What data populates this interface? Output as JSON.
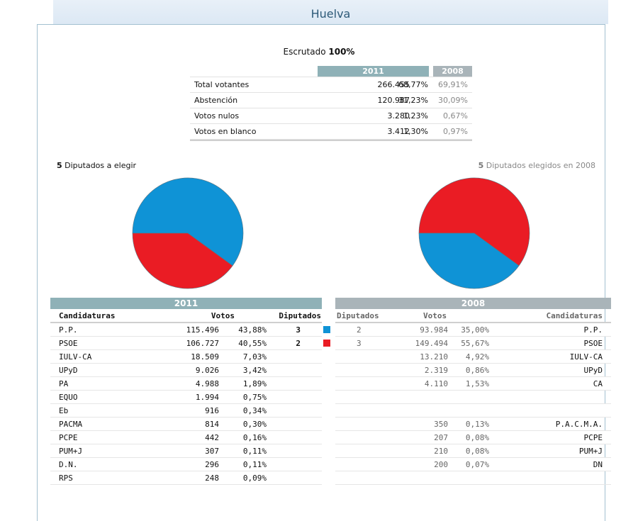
{
  "page": {
    "title": "Huelva"
  },
  "summary": {
    "escrutado_label": "Escrutado",
    "escrutado_value": "100%",
    "year_current": "2011",
    "year_prev": "2008",
    "rows": [
      {
        "label": "Total votantes",
        "value": "266.455",
        "pct": "68,77%",
        "pct_prev": "69,91%"
      },
      {
        "label": "Abstención",
        "value": "120.987",
        "pct": "31,23%",
        "pct_prev": "30,09%"
      },
      {
        "label": "Votos nulos",
        "value": "3.280",
        "pct": "1,23%",
        "pct_prev": "0,67%"
      },
      {
        "label": "Votos en blanco",
        "value": "3.412",
        "pct": "1,30%",
        "pct_prev": "0,97%"
      }
    ]
  },
  "seats": {
    "current_count": "5",
    "current_text": "Diputados a elegir",
    "prev_count": "5",
    "prev_text": "Diputados elegidos en 2008"
  },
  "chart_data": [
    {
      "type": "pie",
      "title": "5 Diputados a elegir (2011)",
      "categories": [
        "P.P.",
        "PSOE"
      ],
      "values": [
        3,
        2
      ],
      "colors": [
        "#0f93d6",
        "#ea1c24"
      ]
    },
    {
      "type": "pie",
      "title": "5 Diputados elegidos en 2008",
      "categories": [
        "PSOE",
        "P.P."
      ],
      "values": [
        3,
        2
      ],
      "colors": [
        "#ea1c24",
        "#0f93d6"
      ]
    }
  ],
  "results_2011": {
    "year": "2011",
    "headers": {
      "name": "Candidaturas",
      "votes": "Votos",
      "seats": "Diputados"
    },
    "rows": [
      {
        "name": "P.P.",
        "votes": "115.496",
        "pct": "43,88%",
        "seats": "3",
        "color": "#0f93d6"
      },
      {
        "name": "PSOE",
        "votes": "106.727",
        "pct": "40,55%",
        "seats": "2",
        "color": "#ea1c24"
      },
      {
        "name": "IULV-CA",
        "votes": "18.509",
        "pct": "7,03%",
        "seats": "",
        "color": ""
      },
      {
        "name": "UPyD",
        "votes": "9.026",
        "pct": "3,42%",
        "seats": "",
        "color": ""
      },
      {
        "name": "PA",
        "votes": "4.988",
        "pct": "1,89%",
        "seats": "",
        "color": ""
      },
      {
        "name": "EQUO",
        "votes": "1.994",
        "pct": "0,75%",
        "seats": "",
        "color": ""
      },
      {
        "name": "Eb",
        "votes": "916",
        "pct": "0,34%",
        "seats": "",
        "color": ""
      },
      {
        "name": "PACMA",
        "votes": "814",
        "pct": "0,30%",
        "seats": "",
        "color": ""
      },
      {
        "name": "PCPE",
        "votes": "442",
        "pct": "0,16%",
        "seats": "",
        "color": ""
      },
      {
        "name": "PUM+J",
        "votes": "307",
        "pct": "0,11%",
        "seats": "",
        "color": ""
      },
      {
        "name": "D.N.",
        "votes": "296",
        "pct": "0,11%",
        "seats": "",
        "color": ""
      },
      {
        "name": "RPS",
        "votes": "248",
        "pct": "0,09%",
        "seats": "",
        "color": ""
      }
    ]
  },
  "results_2008": {
    "year": "2008",
    "headers": {
      "seats": "Diputados",
      "votes": "Votos",
      "name": "Candidaturas"
    },
    "rows": [
      {
        "seats": "2",
        "votes": "93.984",
        "pct": "35,00%",
        "name": "P.P."
      },
      {
        "seats": "3",
        "votes": "149.494",
        "pct": "55,67%",
        "name": "PSOE"
      },
      {
        "seats": "",
        "votes": "13.210",
        "pct": "4,92%",
        "name": "IULV-CA"
      },
      {
        "seats": "",
        "votes": "2.319",
        "pct": "0,86%",
        "name": "UPyD"
      },
      {
        "seats": "",
        "votes": "4.110",
        "pct": "1,53%",
        "name": "CA"
      },
      {
        "seats": "",
        "votes": "",
        "pct": "",
        "name": ""
      },
      {
        "seats": "",
        "votes": "",
        "pct": "",
        "name": ""
      },
      {
        "seats": "",
        "votes": "350",
        "pct": "0,13%",
        "name": "P.A.C.M.A."
      },
      {
        "seats": "",
        "votes": "207",
        "pct": "0,08%",
        "name": "PCPE"
      },
      {
        "seats": "",
        "votes": "210",
        "pct": "0,08%",
        "name": "PUM+J"
      },
      {
        "seats": "",
        "votes": "200",
        "pct": "0,07%",
        "name": "DN"
      },
      {
        "seats": "",
        "votes": "",
        "pct": "",
        "name": ""
      }
    ]
  }
}
